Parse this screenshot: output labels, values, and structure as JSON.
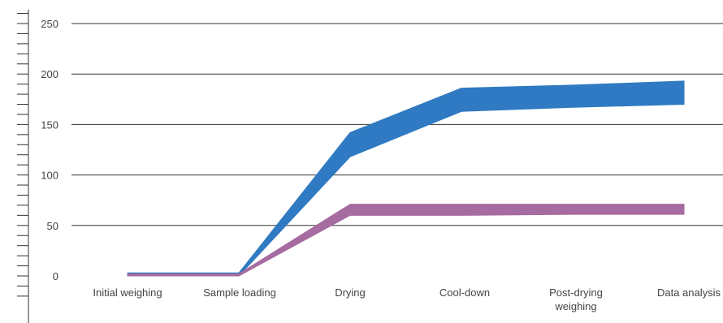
{
  "chart_data": {
    "type": "area",
    "title": "",
    "xlabel": "",
    "ylabel": "",
    "ylim": [
      0,
      250
    ],
    "yticks": [
      "0",
      "50",
      "100",
      "150",
      "200",
      "250"
    ],
    "categories": [
      [
        "Initial weighing"
      ],
      [
        "Sample loading"
      ],
      [
        "Drying"
      ],
      [
        "Cool-down"
      ],
      [
        "Post-drying",
        "weighing"
      ],
      [
        "Data analysis"
      ]
    ],
    "grid": true,
    "legend": "none",
    "series": [
      {
        "color": "#2f7ac2",
        "lower": [
          0,
          0,
          118,
          163,
          167,
          170
        ],
        "upper": [
          3,
          3,
          142,
          186,
          189,
          193
        ]
      },
      {
        "color": "#a66ba0",
        "lower": [
          0,
          0,
          60,
          60,
          61,
          61
        ],
        "upper": [
          2,
          2,
          71,
          71,
          71,
          71
        ]
      }
    ]
  }
}
